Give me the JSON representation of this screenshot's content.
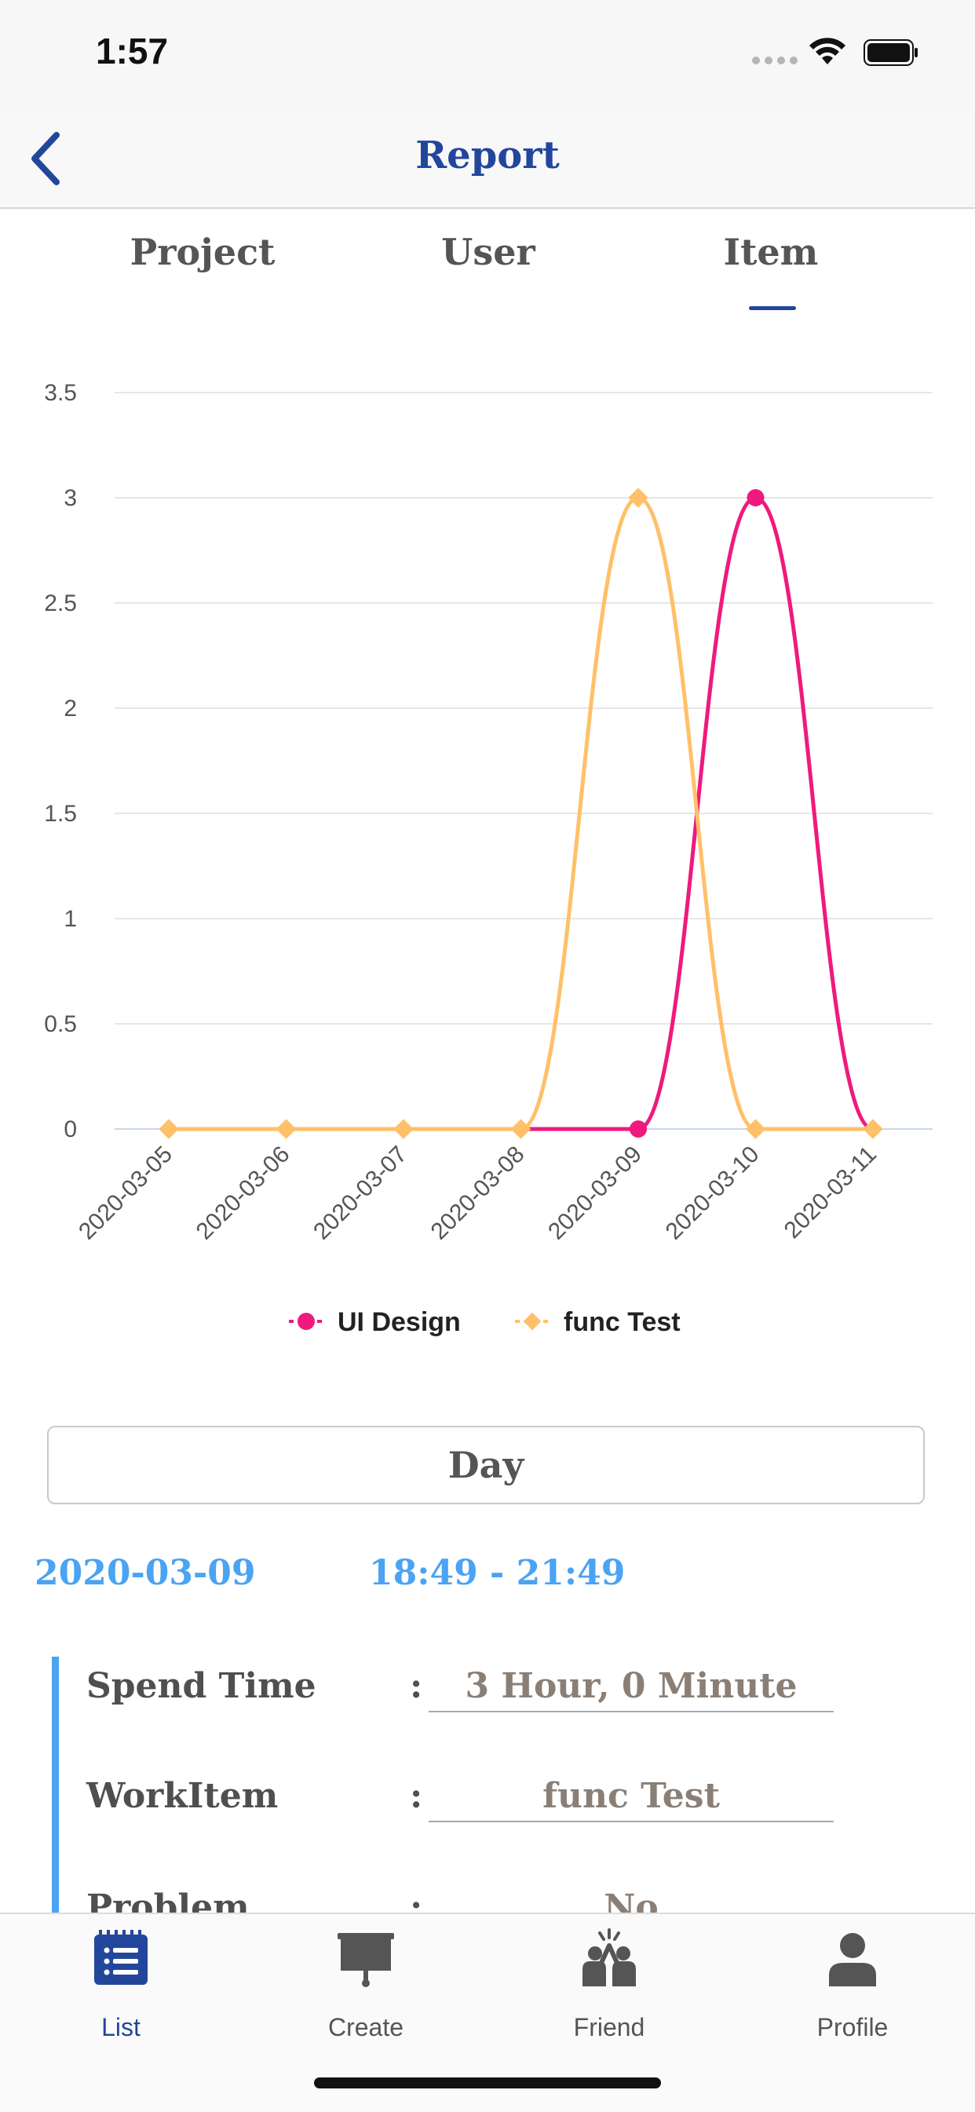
{
  "status": {
    "time": "1:57"
  },
  "nav": {
    "title": "Report"
  },
  "tabs": [
    {
      "label": "Project"
    },
    {
      "label": "User"
    },
    {
      "label": "Item"
    }
  ],
  "chart_data": {
    "type": "line",
    "x": [
      "2020-03-05",
      "2020-03-06",
      "2020-03-07",
      "2020-03-08",
      "2020-03-09",
      "2020-03-10",
      "2020-03-11"
    ],
    "series": [
      {
        "name": "UI Design",
        "values": [
          0,
          0,
          0,
          0,
          0,
          3,
          0
        ],
        "color": "#f0197d",
        "marker": "circle"
      },
      {
        "name": "func Test",
        "values": [
          0,
          0,
          0,
          0,
          3,
          0,
          0
        ],
        "color": "#ffc069",
        "marker": "diamond"
      }
    ],
    "yticks": [
      "0",
      "0.5",
      "1",
      "1.5",
      "2",
      "2.5",
      "3",
      "3.5"
    ],
    "ylim": [
      0,
      3.5
    ],
    "grid": true,
    "legend": "bottom",
    "curve": "smooth"
  },
  "filter": {
    "day_label": "Day"
  },
  "entry": {
    "date": "2020-03-09",
    "time_range": "18:49 - 21:49",
    "rows": [
      {
        "label": "Spend Time",
        "colon": ":",
        "value": "3 Hour, 0 Minute"
      },
      {
        "label": "WorkItem",
        "colon": ":",
        "value": "func Test"
      },
      {
        "label": "Problem",
        "colon": ":",
        "value": "No"
      }
    ]
  },
  "tabbar": [
    {
      "label": "List",
      "icon": "list-icon",
      "active": true
    },
    {
      "label": "Create",
      "icon": "presentation-board-icon",
      "active": false
    },
    {
      "label": "Friend",
      "icon": "friends-icon",
      "active": false
    },
    {
      "label": "Profile",
      "icon": "person-icon",
      "active": false
    }
  ]
}
